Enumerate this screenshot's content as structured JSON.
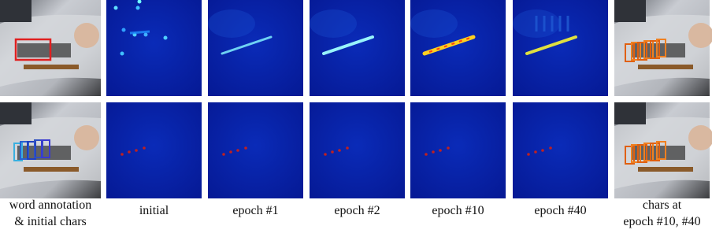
{
  "captions": [
    [
      "word annotation",
      "& initial chars"
    ],
    [
      "initial"
    ],
    [
      "epoch #1"
    ],
    [
      "epoch #2"
    ],
    [
      "epoch #10"
    ],
    [
      "epoch #40"
    ],
    [
      "chars at",
      "epoch #10, #40"
    ]
  ]
}
